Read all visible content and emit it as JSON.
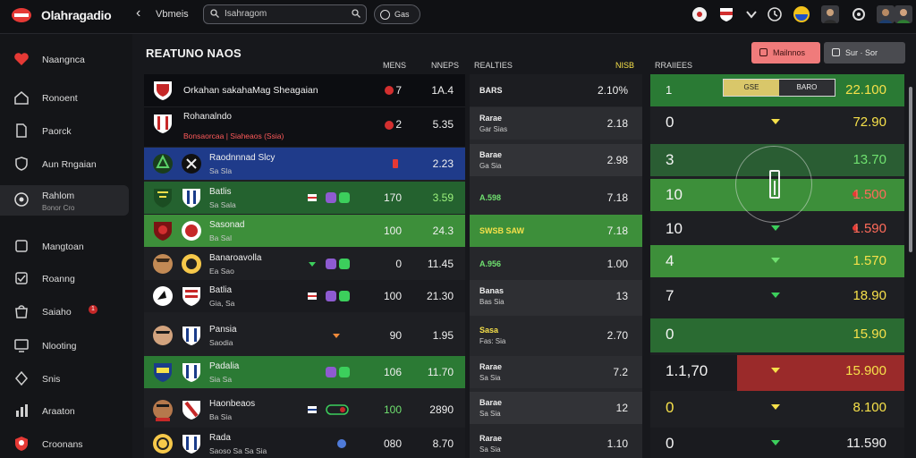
{
  "app": {
    "brand": "Olahragadio",
    "back_label": "Vbmeis"
  },
  "search": {
    "query": "Isahragom"
  },
  "pill": {
    "label": "Gas"
  },
  "colors": {
    "accent_red": "#e53935",
    "green": "#2e8b3e",
    "blue": "#1f3b8a",
    "yellow": "#f6e04a"
  },
  "sidebar": {
    "items": [
      {
        "label": "Naangnca",
        "icon": "heart-icon"
      },
      {
        "label": "Ronoent",
        "icon": "home-icon"
      },
      {
        "label": "Paorck",
        "icon": "file-icon"
      },
      {
        "label": "Aun Rngaian",
        "icon": "shield-icon"
      },
      {
        "label": "Rahlom",
        "sub": "Bonor Cro",
        "icon": "ball-icon"
      },
      {
        "label": "Mangtoan",
        "icon": "box-icon"
      },
      {
        "label": "Roanng",
        "icon": "check-icon"
      },
      {
        "label": "Saiaho",
        "icon": "bag-icon",
        "badge": "1"
      },
      {
        "label": "Nlooting",
        "icon": "screen-icon"
      },
      {
        "label": "Snis",
        "icon": "diamond-icon"
      },
      {
        "label": "Araaton",
        "icon": "bars-icon"
      },
      {
        "label": "Croonans",
        "icon": "crest-icon"
      }
    ]
  },
  "main": {
    "title": "REATUNO NAOS",
    "columns": [
      "MENS",
      "NNEPS",
      "REALTIES",
      "NISB",
      "RRAIIEES"
    ],
    "btn_red": "Mailnnos",
    "btn_gray": "Sur · Sor"
  },
  "rows": [
    {
      "team": "Orkahan sakahaMag Sheagaian",
      "team2": "",
      "v1": "7",
      "v2": "1A.4"
    },
    {
      "team": "Rohanalndo",
      "team2": "Bonsaorcaa | Siaheaos (Ssia)",
      "v1": "2",
      "v2": "5.35"
    },
    {
      "team": "Raodnnnad Slcy",
      "team2": "Sa Sla",
      "v1": "",
      "v2": "2.23"
    },
    {
      "team": "Batlis",
      "team2": "Sa Sala",
      "v1": "170",
      "v2": "3.59"
    },
    {
      "team": "Sasonad",
      "team2": "Ba Sal",
      "v1": "100",
      "v2": "24.3"
    },
    {
      "team": "Banaroavolla",
      "team2": "Ea Sao",
      "v1": "0",
      "v2": "11.45"
    },
    {
      "team": "Batlia",
      "team2": "Gia, Sa",
      "v1": "100",
      "v2": "21.30"
    },
    {
      "team": "Pansia",
      "team2": "Saodia",
      "v1": "90",
      "v2": "1.95"
    },
    {
      "team": "Padalia",
      "team2": "Sia Sa",
      "v1": "106",
      "v2": "11.70"
    },
    {
      "team": "Haonbeaos",
      "team2": "Ba Sia",
      "v1": "100",
      "v2": "2890"
    },
    {
      "team": "Rada",
      "team2": "Saoso Sa Sa Sia",
      "v1": "080",
      "v2": "8.70"
    }
  ],
  "mid": [
    {
      "a": "BARS",
      "b": "",
      "c": "2.10%"
    },
    {
      "a": "Rarae",
      "b": "Gar Sias",
      "c": "2.18"
    },
    {
      "a": "Barae",
      "b": "Ga Sia",
      "c": "2.98"
    },
    {
      "a": "A.598",
      "b": "",
      "c": "7.18"
    },
    {
      "a": "SWSB SAW",
      "b": "",
      "c": "7.18"
    },
    {
      "a": "A.956",
      "b": "",
      "c": "1.00"
    },
    {
      "a": "Banas",
      "b": "Bas  Sia",
      "c": "13"
    },
    {
      "a": "Sasa",
      "b": "Fas: Sia",
      "c": "2.70"
    },
    {
      "a": "Rarae",
      "b": "Sa Sia",
      "c": "7.2"
    },
    {
      "a": "Barae",
      "b": "Sa Sia",
      "c": "12"
    },
    {
      "a": "Rarae",
      "b": "Sa Sia",
      "c": "1.10"
    }
  ],
  "right": [
    {
      "a": "1",
      "c": "22.100"
    },
    {
      "a": "0",
      "c": "72.90"
    },
    {
      "a": "3",
      "c": "13.70"
    },
    {
      "a": "10",
      "c": "1.500"
    },
    {
      "a": "10",
      "c": "1.590"
    },
    {
      "a": "4",
      "c": "1.570"
    },
    {
      "a": "7",
      "c": "18.90"
    },
    {
      "a": "0",
      "c": "15.90"
    },
    {
      "a": "1.1,70",
      "c": "15.900"
    },
    {
      "a": "0",
      "c": "8.100"
    },
    {
      "a": "0",
      "c": "11.590"
    }
  ],
  "toggle": {
    "on": "GSE",
    "off": "BARO"
  }
}
